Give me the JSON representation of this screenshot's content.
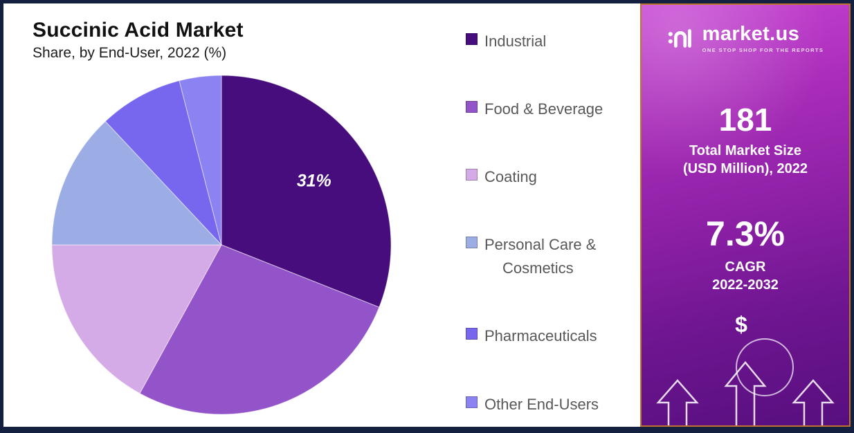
{
  "chart": {
    "title": "Succinic Acid Market",
    "subtitle": "Share, by End-User, 2022 (%)"
  },
  "chart_data": {
    "type": "pie",
    "title": "Succinic Acid Market",
    "subtitle": "Share, by End-User, 2022 (%)",
    "unit": "%",
    "start_angle_deg": -90,
    "direction": "clockwise",
    "legend_position": "right",
    "slices": [
      {
        "label": "Industrial",
        "value": 31,
        "color": "#470d7d",
        "data_label": "31%"
      },
      {
        "label": "Food & Beverage",
        "value": 27,
        "color": "#9353c9",
        "data_label": ""
      },
      {
        "label": "Coating",
        "value": 17,
        "color": "#d4abe6",
        "data_label": ""
      },
      {
        "label": "Personal Care & Cosmetics",
        "value": 13,
        "color": "#9cade5",
        "data_label": ""
      },
      {
        "label": "Pharmaceuticals",
        "value": 8,
        "color": "#7767ef",
        "data_label": ""
      },
      {
        "label": "Other End-Users",
        "value": 4,
        "color": "#8b83f1",
        "data_label": ""
      }
    ],
    "notes": "Only the Industrial slice shows a printed data label (31%); other slice values are estimated from arc angles."
  },
  "sidebar": {
    "brand": {
      "name": "market.us",
      "tagline": "ONE STOP SHOP FOR THE REPORTS"
    },
    "market_size": {
      "value": "181",
      "label_line1": "Total Market Size",
      "label_line2": "(USD Million), 2022"
    },
    "cagr": {
      "value": "7.3%",
      "label_line1": "CAGR",
      "label_line2": "2022-2032"
    },
    "decor": {
      "dollar_symbol": "$"
    }
  },
  "colors": {
    "frame_navy": "#14203f",
    "panel_gradient_top": "#c643d2",
    "panel_gradient_bottom": "#570f7e",
    "panel_border_orange": "#bd742e",
    "legend_text": "#58585a",
    "title_text": "#111111"
  }
}
